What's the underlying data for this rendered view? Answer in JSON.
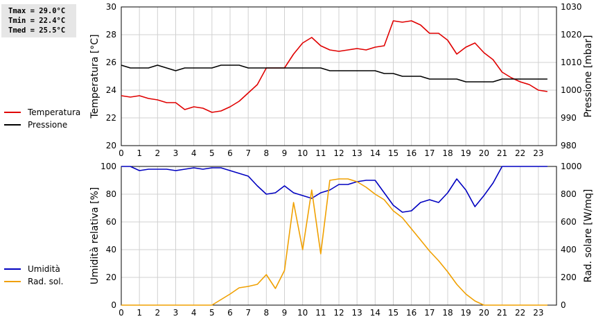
{
  "stats": {
    "tmax": "Tmax = 29.0°C",
    "tmin": "Tmin = 22.4°C",
    "tmed": "Tmed = 25.5°C"
  },
  "colors": {
    "temperature": "#e00000",
    "pressure": "#000000",
    "humidity": "#0000c0",
    "radiation": "#f0a000",
    "grid": "#d0d0d0"
  },
  "chart_data": [
    {
      "type": "line",
      "xlim": [
        0,
        24
      ],
      "x_ticks": [
        0,
        1,
        2,
        3,
        4,
        5,
        6,
        7,
        8,
        9,
        10,
        11,
        12,
        13,
        14,
        15,
        16,
        17,
        18,
        19,
        20,
        21,
        22,
        23
      ],
      "grid": true,
      "legend_position": "left",
      "ylabel_left": "Temperatura [°C]",
      "ylim_left": [
        20,
        30
      ],
      "yticks_left": [
        20,
        22,
        24,
        26,
        28,
        30
      ],
      "ylabel_right": "Pressione [mbar]",
      "ylim_right": [
        980,
        1030
      ],
      "yticks_right": [
        980,
        990,
        1000,
        1010,
        1020,
        1030
      ],
      "series": [
        {
          "name": "Temperatura",
          "axis": "left",
          "x": [
            0,
            0.5,
            1,
            1.5,
            2,
            2.5,
            3,
            3.5,
            4,
            4.5,
            5,
            5.5,
            6,
            6.5,
            7,
            7.5,
            8,
            8.5,
            9,
            9.5,
            10,
            10.5,
            11,
            11.5,
            12,
            12.5,
            13,
            13.5,
            14,
            14.5,
            15,
            15.5,
            16,
            16.5,
            17,
            17.5,
            18,
            18.5,
            19,
            19.5,
            20,
            20.5,
            21,
            21.5,
            22,
            22.5,
            23,
            23.5
          ],
          "values": [
            23.6,
            23.5,
            23.6,
            23.4,
            23.3,
            23.1,
            23.1,
            22.6,
            22.8,
            22.7,
            22.4,
            22.5,
            22.8,
            23.2,
            23.8,
            24.4,
            25.6,
            25.6,
            25.6,
            26.6,
            27.4,
            27.8,
            27.2,
            26.9,
            26.8,
            26.9,
            27.0,
            26.9,
            27.1,
            27.2,
            29.0,
            28.9,
            29.0,
            28.7,
            28.1,
            28.1,
            27.6,
            26.6,
            27.1,
            27.4,
            26.7,
            26.2,
            25.3,
            24.9,
            24.6,
            24.4,
            24.0,
            23.9
          ]
        },
        {
          "name": "Pressione",
          "axis": "right",
          "x": [
            0,
            0.5,
            1,
            1.5,
            2,
            2.5,
            3,
            3.5,
            4,
            4.5,
            5,
            5.5,
            6,
            6.5,
            7,
            7.5,
            8,
            8.5,
            9,
            9.5,
            10,
            10.5,
            11,
            11.5,
            12,
            12.5,
            13,
            13.5,
            14,
            14.5,
            15,
            15.5,
            16,
            16.5,
            17,
            17.5,
            18,
            18.5,
            19,
            19.5,
            20,
            20.5,
            21,
            21.5,
            22,
            22.5,
            23,
            23.5
          ],
          "values": [
            1009,
            1008,
            1008,
            1008,
            1009,
            1008,
            1007,
            1008,
            1008,
            1008,
            1008,
            1009,
            1009,
            1009,
            1008,
            1008,
            1008,
            1008,
            1008,
            1008,
            1008,
            1008,
            1008,
            1007,
            1007,
            1007,
            1007,
            1007,
            1007,
            1006,
            1006,
            1005,
            1005,
            1005,
            1004,
            1004,
            1004,
            1004,
            1003,
            1003,
            1003,
            1003,
            1004,
            1004,
            1004,
            1004,
            1004,
            1004
          ]
        }
      ]
    },
    {
      "type": "line",
      "xlim": [
        0,
        24
      ],
      "x_ticks": [
        0,
        1,
        2,
        3,
        4,
        5,
        6,
        7,
        8,
        9,
        10,
        11,
        12,
        13,
        14,
        15,
        16,
        17,
        18,
        19,
        20,
        21,
        22,
        23
      ],
      "grid": true,
      "legend_position": "left",
      "ylabel_left": "Umidità relativa [%]",
      "ylim_left": [
        0,
        100
      ],
      "yticks_left": [
        0,
        20,
        40,
        60,
        80,
        100
      ],
      "ylabel_right": "Rad. solare [W/mq]",
      "ylim_right": [
        0,
        1000
      ],
      "yticks_right": [
        0,
        200,
        400,
        600,
        800,
        1000
      ],
      "series": [
        {
          "name": "Umidità",
          "axis": "left",
          "x": [
            0,
            0.5,
            1,
            1.5,
            2,
            2.5,
            3,
            3.5,
            4,
            4.5,
            5,
            5.5,
            6,
            6.5,
            7,
            7.5,
            8,
            8.5,
            9,
            9.5,
            10,
            10.5,
            11,
            11.5,
            12,
            12.5,
            13,
            13.5,
            14,
            14.5,
            15,
            15.5,
            16,
            16.5,
            17,
            17.5,
            18,
            18.5,
            19,
            19.5,
            20,
            20.5,
            21,
            21.5,
            22,
            22.5,
            23,
            23.5
          ],
          "values": [
            100,
            100,
            97,
            98,
            98,
            98,
            97,
            98,
            99,
            98,
            99,
            99,
            97,
            95,
            93,
            86,
            80,
            81,
            86,
            81,
            79,
            77,
            81,
            83,
            87,
            87,
            89,
            90,
            90,
            81,
            72,
            67,
            68,
            74,
            76,
            74,
            81,
            91,
            83,
            71,
            79,
            88,
            100,
            100,
            100,
            100,
            100,
            100
          ]
        },
        {
          "name": "Rad. sol.",
          "axis": "right",
          "x": [
            0,
            0.5,
            1,
            1.5,
            2,
            2.5,
            3,
            3.5,
            4,
            4.5,
            5,
            5.5,
            6,
            6.5,
            7,
            7.5,
            8,
            8.5,
            9,
            9.5,
            10,
            10.5,
            11,
            11.5,
            12,
            12.5,
            13,
            13.5,
            14,
            14.5,
            15,
            15.5,
            16,
            16.5,
            17,
            17.5,
            18,
            18.5,
            19,
            19.5,
            20,
            20.5,
            21,
            21.5,
            22,
            22.5,
            23,
            23.5
          ],
          "values": [
            0,
            0,
            0,
            0,
            0,
            0,
            0,
            0,
            0,
            0,
            0,
            40,
            80,
            125,
            135,
            150,
            220,
            120,
            250,
            740,
            400,
            830,
            370,
            900,
            910,
            910,
            890,
            850,
            800,
            760,
            680,
            630,
            550,
            470,
            390,
            320,
            240,
            150,
            80,
            30,
            0,
            0,
            0,
            0,
            0,
            0,
            0,
            0
          ]
        }
      ]
    }
  ]
}
